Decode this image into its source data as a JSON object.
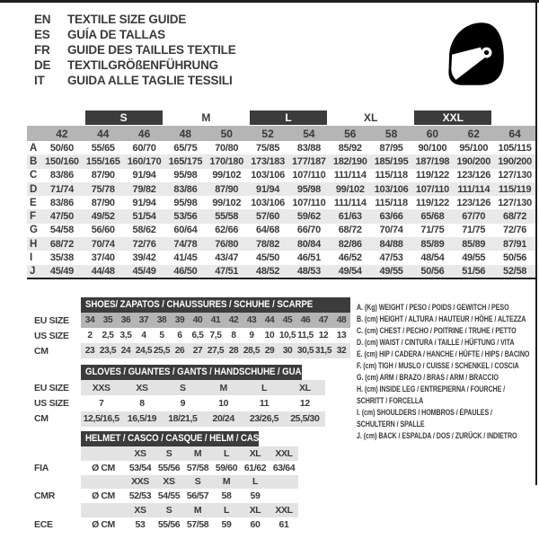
{
  "header": {
    "languages": [
      {
        "code": "EN",
        "label": "TEXTILE SIZE GUIDE"
      },
      {
        "code": "ES",
        "label": "GUÍA DE TALLAS"
      },
      {
        "code": "FR",
        "label": "GUIDE DES TAILLES TEXTILE"
      },
      {
        "code": "DE",
        "label": "TEXTILGRÖßENFÜHRUNG"
      },
      {
        "code": "IT",
        "label": "GUIDA ALLE TAGLIE TESSILI"
      }
    ],
    "logo_icon": "helmet-icon"
  },
  "colors": {
    "bar": "#3c3c3c",
    "bar_text": "#ffffff",
    "header_gray": "#b5b5b5",
    "stripe_gray": "#e9e9e9",
    "light_gray": "#e3e3e3",
    "text": "#3a3a3a"
  },
  "main_table": {
    "groups": [
      {
        "label": "S",
        "boxed": true
      },
      {
        "label": "M",
        "boxed": false
      },
      {
        "label": "L",
        "boxed": true
      },
      {
        "label": "XL",
        "boxed": false
      },
      {
        "label": "XXL",
        "boxed": true
      }
    ],
    "columns": [
      "42",
      "44",
      "46",
      "48",
      "50",
      "52",
      "54",
      "56",
      "58",
      "60",
      "62",
      "64"
    ],
    "rows": [
      {
        "label": "A",
        "values": [
          "50/60",
          "55/65",
          "60/70",
          "65/75",
          "70/80",
          "75/85",
          "83/88",
          "85/92",
          "87/95",
          "90/100",
          "95/100",
          "105/115"
        ]
      },
      {
        "label": "B",
        "values": [
          "150/160",
          "155/165",
          "160/170",
          "165/175",
          "170/180",
          "173/183",
          "177/187",
          "182/190",
          "185/195",
          "187/198",
          "190/200",
          "190/200"
        ]
      },
      {
        "label": "C",
        "values": [
          "83/86",
          "87/90",
          "91/94",
          "95/98",
          "99/102",
          "103/106",
          "107/110",
          "111/114",
          "115/118",
          "119/122",
          "123/126",
          "127/130"
        ]
      },
      {
        "label": "D",
        "values": [
          "71/74",
          "75/78",
          "79/82",
          "83/86",
          "87/90",
          "91/94",
          "95/98",
          "99/102",
          "103/106",
          "107/110",
          "111/114",
          "115/119"
        ]
      },
      {
        "label": "E",
        "values": [
          "83/86",
          "87/90",
          "91/94",
          "95/98",
          "99/102",
          "103/106",
          "107/110",
          "111/114",
          "115/118",
          "119/122",
          "123/126",
          "127/130"
        ]
      },
      {
        "label": "F",
        "values": [
          "47/50",
          "49/52",
          "51/54",
          "53/56",
          "55/58",
          "57/60",
          "59/62",
          "61/63",
          "63/66",
          "65/68",
          "67/70",
          "68/72"
        ]
      },
      {
        "label": "G",
        "values": [
          "54/58",
          "56/60",
          "58/62",
          "60/64",
          "62/66",
          "64/68",
          "66/70",
          "68/72",
          "70/74",
          "71/75",
          "71/75",
          "72/76"
        ]
      },
      {
        "label": "H",
        "values": [
          "68/72",
          "70/74",
          "72/76",
          "74/78",
          "76/80",
          "78/82",
          "80/84",
          "82/86",
          "84/88",
          "85/89",
          "85/89",
          "87/91"
        ]
      },
      {
        "label": "I",
        "values": [
          "35/38",
          "37/40",
          "39/42",
          "41/45",
          "43/47",
          "45/50",
          "46/51",
          "46/52",
          "47/53",
          "48/54",
          "49/55",
          "50/56"
        ]
      },
      {
        "label": "J",
        "values": [
          "45/49",
          "44/48",
          "45/49",
          "46/50",
          "47/51",
          "48/52",
          "48/53",
          "49/54",
          "49/55",
          "50/56",
          "51/56",
          "52/58"
        ]
      }
    ]
  },
  "shoes_table": {
    "title": "SHOES/ ZAPATOS / CHAUSSURES / SCHUHE / SCARPE",
    "rows": [
      {
        "label": "EU SIZE",
        "shade": "dark",
        "values": [
          "34",
          "35",
          "36",
          "37",
          "38",
          "39",
          "40",
          "41",
          "42",
          "43",
          "44",
          "45",
          "46",
          "47",
          "48"
        ]
      },
      {
        "label": "US SIZE",
        "shade": "none",
        "values": [
          "2",
          "2,5",
          "3,5",
          "4",
          "5",
          "6",
          "6,5",
          "7,5",
          "8",
          "9",
          "10",
          "10,5",
          "11,5",
          "12",
          "13"
        ]
      },
      {
        "label": "CM",
        "shade": "light",
        "values": [
          "23",
          "23,5",
          "24",
          "24,5",
          "25,5",
          "26",
          "27",
          "27,5",
          "28",
          "28,5",
          "29",
          "30",
          "30,5",
          "31,5",
          "32"
        ]
      }
    ]
  },
  "gloves_table": {
    "title": "GLOVES / GUANTES / GANTS / HANDSCHUHE / GUANTI",
    "rows": [
      {
        "label": "EU SIZE",
        "shade": "light",
        "values": [
          "XXS",
          "XS",
          "S",
          "M",
          "L",
          "XL"
        ]
      },
      {
        "label": "US SIZE",
        "shade": "none",
        "values": [
          "7",
          "8",
          "9",
          "10",
          "11",
          "12"
        ]
      },
      {
        "label": "CM",
        "shade": "light",
        "values": [
          "12,5/16,5",
          "16,5/19",
          "18/21,5",
          "20/24",
          "23/26,5",
          "25,5/30"
        ]
      }
    ]
  },
  "helmet_table": {
    "title": "HELMET / CASCO / CASQUE / HELM / CASCO",
    "unit_label": "Ø CM",
    "standards": [
      {
        "label": "FIA",
        "sizes": [
          "XS",
          "S",
          "M",
          "L",
          "XL",
          "XXL"
        ],
        "values": [
          "53/54",
          "55/56",
          "57/58",
          "59/60",
          "61/62",
          "63/64"
        ]
      },
      {
        "label": "CMR",
        "sizes": [
          "XXS",
          "XS",
          "S",
          "M",
          "L",
          ""
        ],
        "values": [
          "52/53",
          "54/55",
          "56/57",
          "58",
          "59",
          ""
        ]
      },
      {
        "label": "ECE",
        "sizes": [
          "XS",
          "S",
          "M",
          "L",
          "XL",
          "XXL"
        ],
        "values": [
          "53",
          "55/56",
          "57/58",
          "59",
          "60",
          "61"
        ]
      }
    ]
  },
  "legend": {
    "items": [
      {
        "text": "A. (Kg) WEIGHT / PESO / POIDS / GEWITCH / PESO"
      },
      {
        "text": "B. (cm) HEIGHT / ALTURA / HAUTEUR / HÖHE / ALTEZZA"
      },
      {
        "text": "C. (cm) CHEST / PECHO / POITRINE / TRUHE / PETTO"
      },
      {
        "text": "D. (cm) WAIST / CINTURA / TAILLE / HÜFTUNG / VITA"
      },
      {
        "text": "E. (cm) HIP / CADERA / HANCHE / HÜFTE / HIPS / BACINO"
      },
      {
        "text": "F. (cm) TIGH / MUSLO / CUISSE / SCHENKEL / COSCIA"
      },
      {
        "text": "G. (cm) ARM / BRAZO / BRAS / ARM / BRACCIO"
      },
      {
        "text": "H. (cm) INSIDE LEG / ENTREPIERNA / FOURCHE /",
        "text2": "SCHRITT / FORCELLA"
      },
      {
        "text": "I. (cm) SHOULDERS / HOMBROS / ÉPAULES /",
        "text2": "SCHULTERN / SPALLE"
      },
      {
        "text": "J. (cm) BACK / ESPALDA / DOS / ZURÜCK / INDIETRO"
      }
    ]
  }
}
